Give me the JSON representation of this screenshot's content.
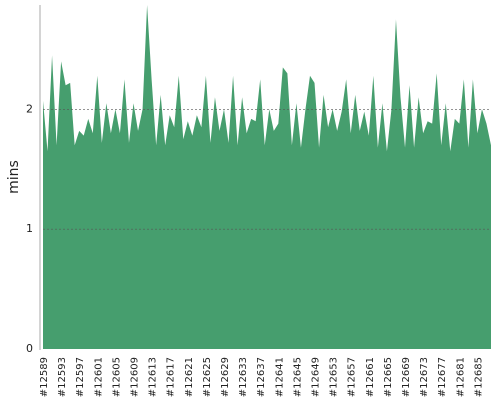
{
  "chart_data": {
    "type": "area",
    "y_label": "mins",
    "categories": [
      "#12589",
      null,
      null,
      null,
      "#12593",
      null,
      null,
      null,
      "#12597",
      null,
      null,
      null,
      "#12601",
      null,
      null,
      null,
      "#12605",
      null,
      null,
      null,
      "#12609",
      null,
      null,
      null,
      "#12613",
      null,
      null,
      null,
      "#12617",
      null,
      null,
      null,
      "#12621",
      null,
      null,
      null,
      "#12625",
      null,
      null,
      null,
      "#12629",
      null,
      null,
      null,
      "#12633",
      null,
      null,
      null,
      "#12637",
      null,
      null,
      null,
      "#12641",
      null,
      null,
      null,
      "#12645",
      null,
      null,
      null,
      "#12649",
      null,
      null,
      null,
      "#12653",
      null,
      null,
      null,
      "#12657",
      null,
      null,
      null,
      "#12661",
      null,
      null,
      null,
      "#12665",
      null,
      null,
      null,
      "#12669",
      null,
      null,
      null,
      "#12673",
      null,
      null,
      null,
      "#12677",
      null,
      null,
      null,
      "#12681",
      null,
      null,
      null,
      "#12685",
      null,
      null,
      null
    ],
    "values": [
      2.07,
      1.65,
      2.45,
      1.7,
      2.4,
      2.2,
      2.22,
      1.7,
      1.82,
      1.78,
      1.92,
      1.8,
      2.28,
      1.72,
      2.05,
      1.8,
      2.0,
      1.8,
      2.25,
      1.72,
      2.05,
      1.82,
      2.0,
      2.87,
      2.25,
      1.7,
      2.12,
      1.7,
      1.95,
      1.85,
      2.28,
      1.75,
      1.9,
      1.78,
      1.95,
      1.85,
      2.28,
      1.72,
      2.1,
      1.82,
      2.0,
      1.72,
      2.28,
      1.7,
      2.1,
      1.8,
      1.92,
      1.9,
      2.25,
      1.7,
      2.0,
      1.82,
      1.88,
      2.35,
      2.3,
      1.7,
      2.05,
      1.68,
      2.0,
      2.28,
      2.22,
      1.68,
      2.12,
      1.85,
      2.0,
      1.82,
      1.98,
      2.25,
      1.8,
      2.12,
      1.82,
      1.98,
      1.78,
      2.28,
      1.68,
      2.05,
      1.65,
      2.0,
      2.75,
      2.1,
      1.68,
      2.2,
      1.68,
      2.1,
      1.8,
      1.9,
      1.88,
      2.3,
      1.7,
      2.05,
      1.65,
      1.92,
      1.88,
      2.25,
      1.68,
      2.25,
      1.8,
      2.0,
      1.88,
      1.7
    ],
    "color": "#469e6e",
    "ylim": [
      0,
      2.87
    ],
    "yticks": [
      0,
      1,
      2
    ],
    "grid": true
  }
}
